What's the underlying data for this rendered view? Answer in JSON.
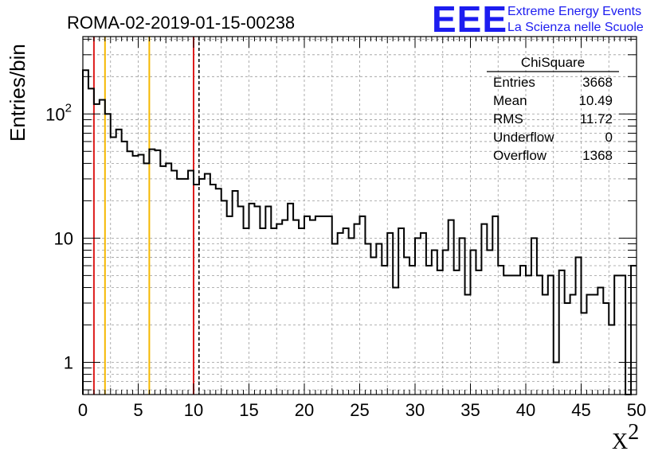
{
  "chart_data": {
    "type": "bar",
    "title": "ROMA-02-2019-01-15-00238",
    "ylabel": "Entries/bin",
    "xlabel_base": "X",
    "xlabel_sup": "2",
    "xlim": [
      0,
      50
    ],
    "ylim": [
      0.55,
      420
    ],
    "yscale": "log",
    "grid": true,
    "bin_width": 0.5,
    "x_ticks": [
      "0",
      "5",
      "10",
      "15",
      "20",
      "25",
      "30",
      "35",
      "40",
      "45",
      "50"
    ],
    "y_ticks": [
      {
        "value": 1,
        "label": "1",
        "sup": ""
      },
      {
        "value": 10,
        "label": "10",
        "sup": ""
      },
      {
        "value": 100,
        "label": "10",
        "sup": "2"
      }
    ],
    "values": [
      225,
      160,
      120,
      130,
      100,
      65,
      75,
      60,
      50,
      46,
      47,
      40,
      52,
      51,
      38,
      40,
      35,
      30,
      30,
      35,
      27,
      30,
      33,
      27,
      25,
      20,
      15,
      24,
      18,
      12,
      19,
      18,
      12,
      18,
      12,
      13,
      14,
      19,
      14,
      12,
      15,
      14,
      15,
      15,
      15,
      9,
      11,
      12,
      10,
      13,
      15,
      9,
      7,
      9,
      6,
      11,
      4,
      12,
      7,
      6,
      10,
      11,
      6,
      8,
      5.5,
      8,
      14,
      5.5,
      10,
      3.5,
      8,
      5.5,
      13,
      8,
      15,
      6,
      5,
      5,
      5,
      6,
      5,
      10,
      5,
      3.5,
      5,
      1,
      5.5,
      3,
      3.5,
      7,
      2.5,
      3.5,
      3.5,
      4,
      3,
      2,
      5,
      5,
      0.01,
      6
    ],
    "vertical_lines": [
      {
        "x": 1,
        "color": "#dd1c1c",
        "style": "solid"
      },
      {
        "x": 2,
        "color": "#f5b800",
        "style": "solid"
      },
      {
        "x": 6,
        "color": "#f5b800",
        "style": "solid"
      },
      {
        "x": 10,
        "color": "#dd1c1c",
        "style": "solid"
      },
      {
        "x": 10.49,
        "color": "#000000",
        "style": "dashed"
      }
    ],
    "stats": {
      "title": "ChiSquare",
      "rows": [
        {
          "label": "Entries",
          "value": "3668"
        },
        {
          "label": "Mean",
          "value": "10.49"
        },
        {
          "label": "RMS",
          "value": "11.72"
        },
        {
          "label": "Underflow",
          "value": "0"
        },
        {
          "label": "Overflow",
          "value": "1368"
        }
      ]
    }
  },
  "logo": {
    "acronym": "EEE",
    "line1": "Extreme Energy Events",
    "line2": "La Scienza nelle Scuole",
    "color": "#1c1cf0"
  }
}
